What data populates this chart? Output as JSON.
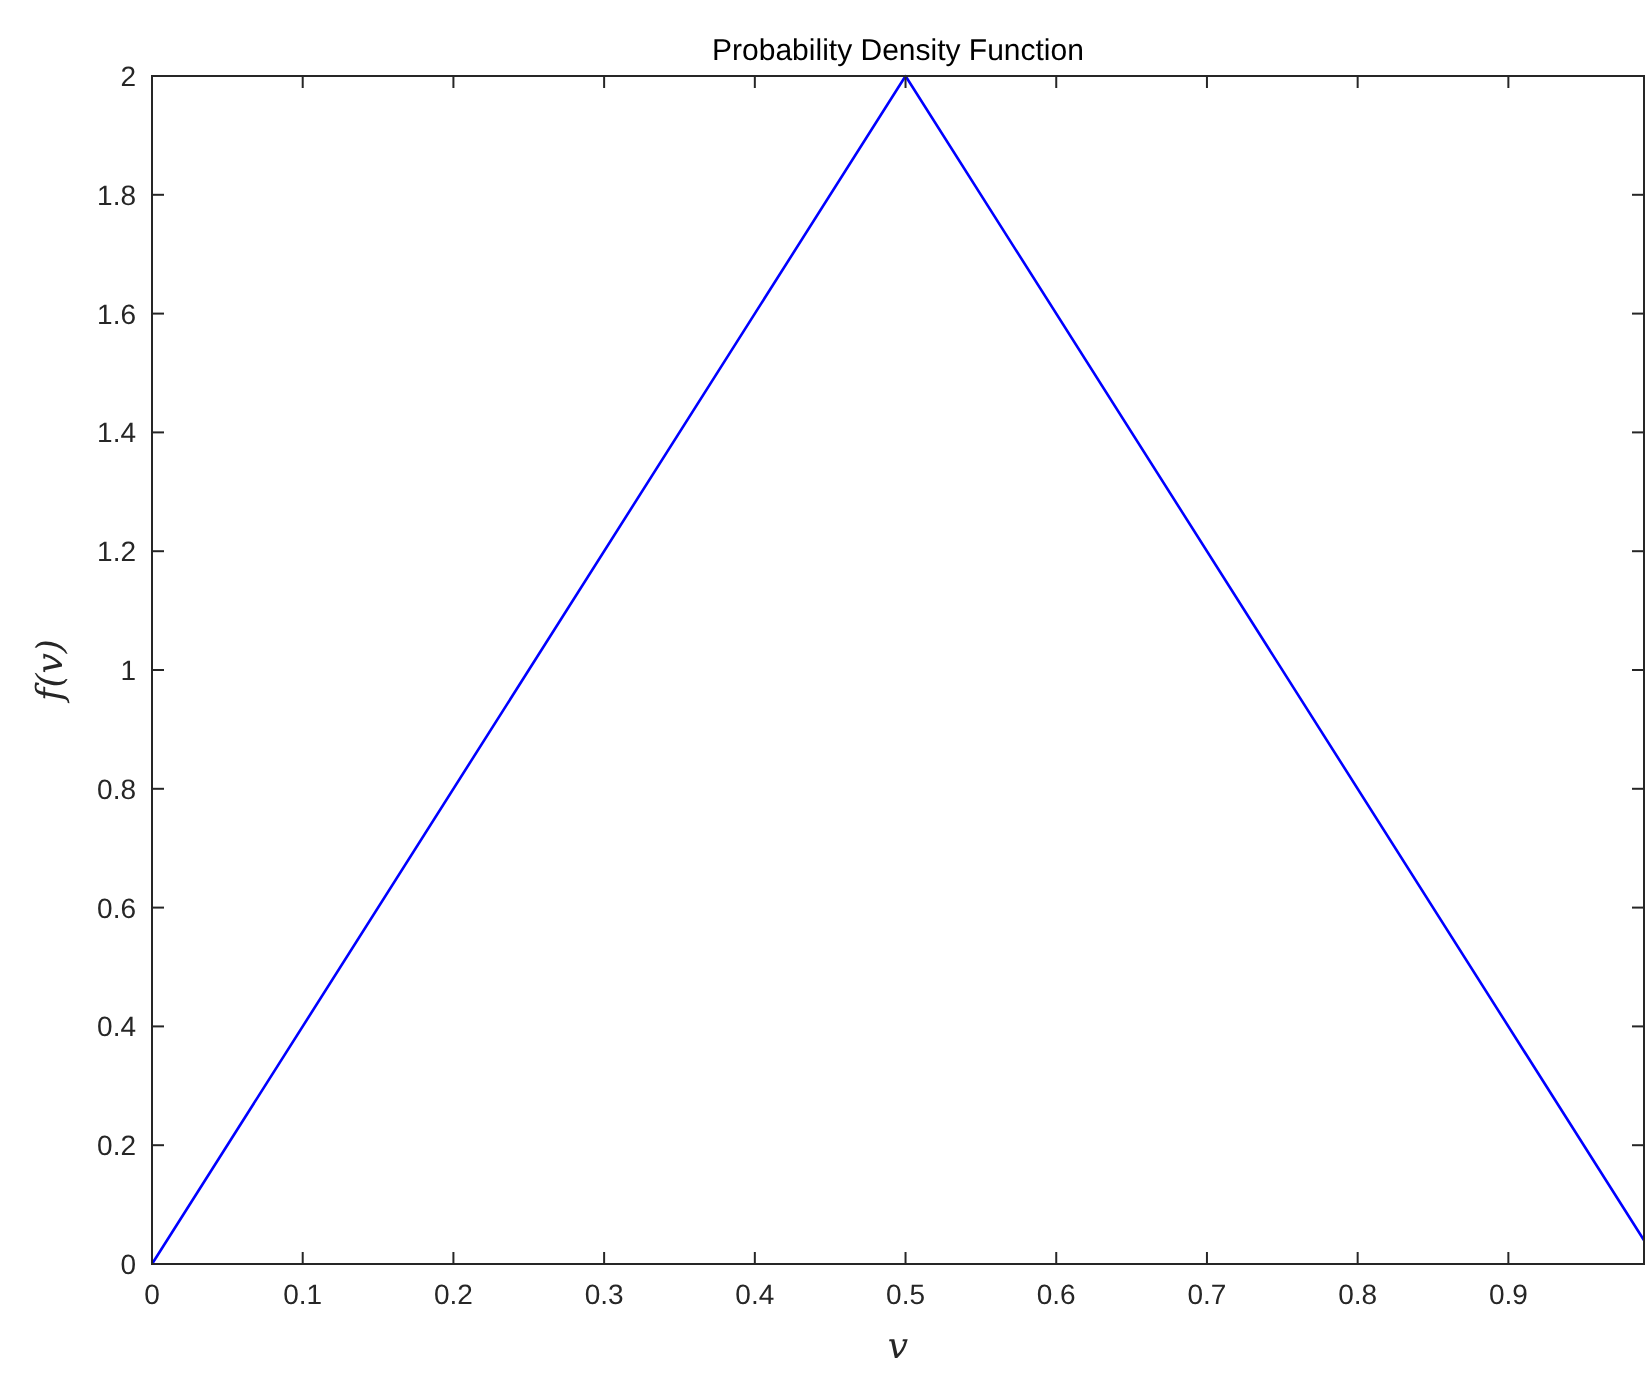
{
  "chart_data": {
    "type": "line",
    "title": "Probability Density Function",
    "xlabel": "v",
    "ylabel": "f(v)",
    "x": [
      0,
      0.5,
      0.99
    ],
    "series": [
      {
        "color": "#0000ff",
        "values": [
          0,
          2,
          0.04
        ]
      }
    ],
    "xlim": [
      0,
      0.99
    ],
    "xticks": [
      0,
      0.1,
      0.2,
      0.3,
      0.4,
      0.5,
      0.6,
      0.7,
      0.8,
      0.9
    ],
    "ylim": [
      0,
      2
    ],
    "yticks": [
      0,
      0.2,
      0.4,
      0.6,
      0.8,
      1,
      1.2,
      1.4,
      1.6,
      1.8,
      2
    ],
    "grid": false,
    "marker": "none",
    "line_style": "solid"
  }
}
